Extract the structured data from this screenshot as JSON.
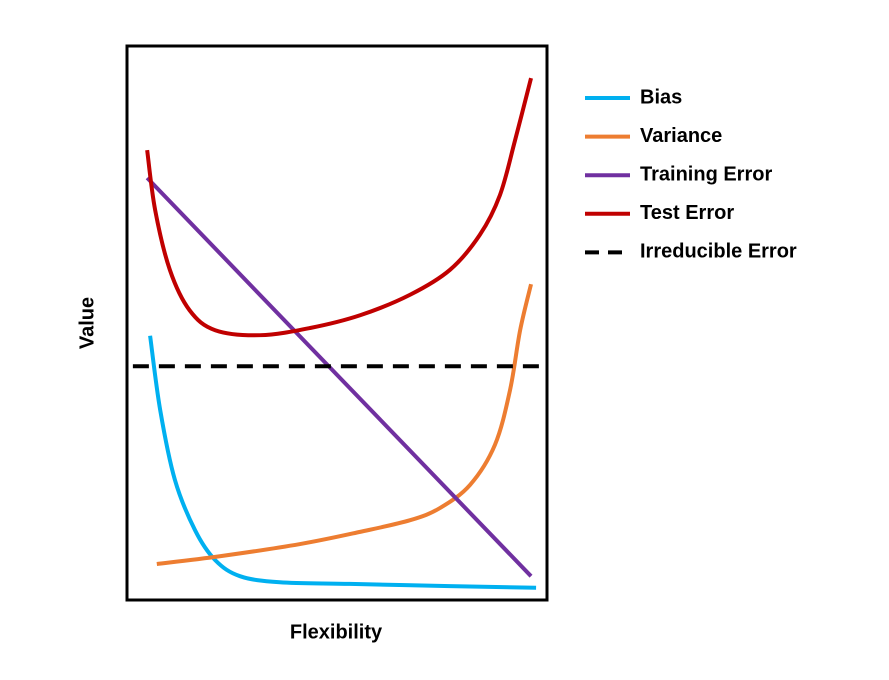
{
  "chart_data": {
    "type": "line",
    "xlabel": "Flexibility",
    "ylabel": "Value",
    "xlim": [
      0,
      100
    ],
    "ylim": [
      0,
      100
    ],
    "series": [
      {
        "name": "Bias",
        "color": "#00b0f0",
        "x": [
          5.5,
          7.9,
          11.4,
          16.2,
          21.0,
          26.9,
          36.4,
          53.1,
          76.9,
          97.4
        ],
        "values": [
          47.7,
          34.3,
          21.7,
          12.6,
          7.2,
          4.3,
          3.2,
          2.9,
          2.5,
          2.2
        ]
      },
      {
        "name": "Variance",
        "color": "#ed7d31",
        "x": [
          7.1,
          22.1,
          41.2,
          55.5,
          67.4,
          74.5,
          81.7,
          87.6,
          91.2,
          93.6,
          96.2
        ],
        "values": [
          6.5,
          7.9,
          10.1,
          12.3,
          14.4,
          16.6,
          20.8,
          28.0,
          37.9,
          48.7,
          57.0
        ]
      },
      {
        "name": "Training Error",
        "color": "#7030a0",
        "x": [
          4.8,
          96.2
        ],
        "values": [
          76.2,
          4.3
        ]
      },
      {
        "name": "Test Error",
        "color": "#c00000",
        "x": [
          4.8,
          6.7,
          10.2,
          14.9,
          21.0,
          31.7,
          43.6,
          55.5,
          67.4,
          76.9,
          84.0,
          88.8,
          92.4,
          96.2
        ],
        "values": [
          81.2,
          70.4,
          59.6,
          52.3,
          48.7,
          47.8,
          49.1,
          51.4,
          55.1,
          59.6,
          65.9,
          73.1,
          83.0,
          94.2
        ]
      },
      {
        "name": "Irreducible Error",
        "color": "#000000",
        "dashed": true,
        "x": [
          1.4,
          98.6
        ],
        "values": [
          42.2,
          42.2
        ]
      }
    ],
    "legend": "right"
  }
}
